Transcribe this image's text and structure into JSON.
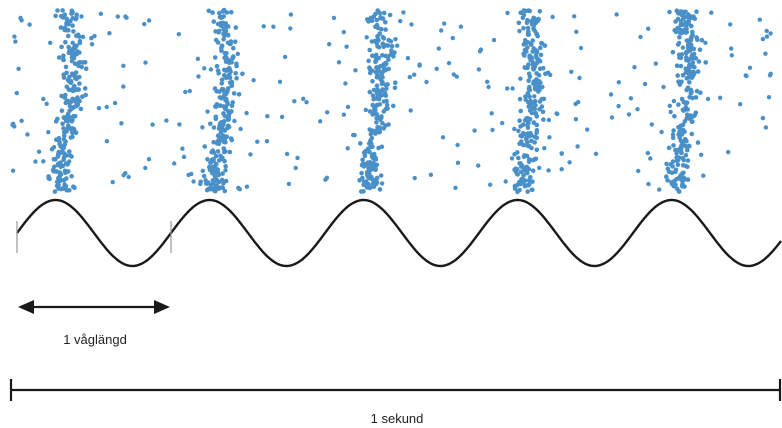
{
  "labels": {
    "wavelength": "1 våglängd",
    "second": "1 sekund"
  },
  "diagram": {
    "cycles_per_second": 5,
    "particle_color": "#4a90c8",
    "wave_color": "#1a1a1a",
    "arrow_color": "#1a1a1a"
  }
}
